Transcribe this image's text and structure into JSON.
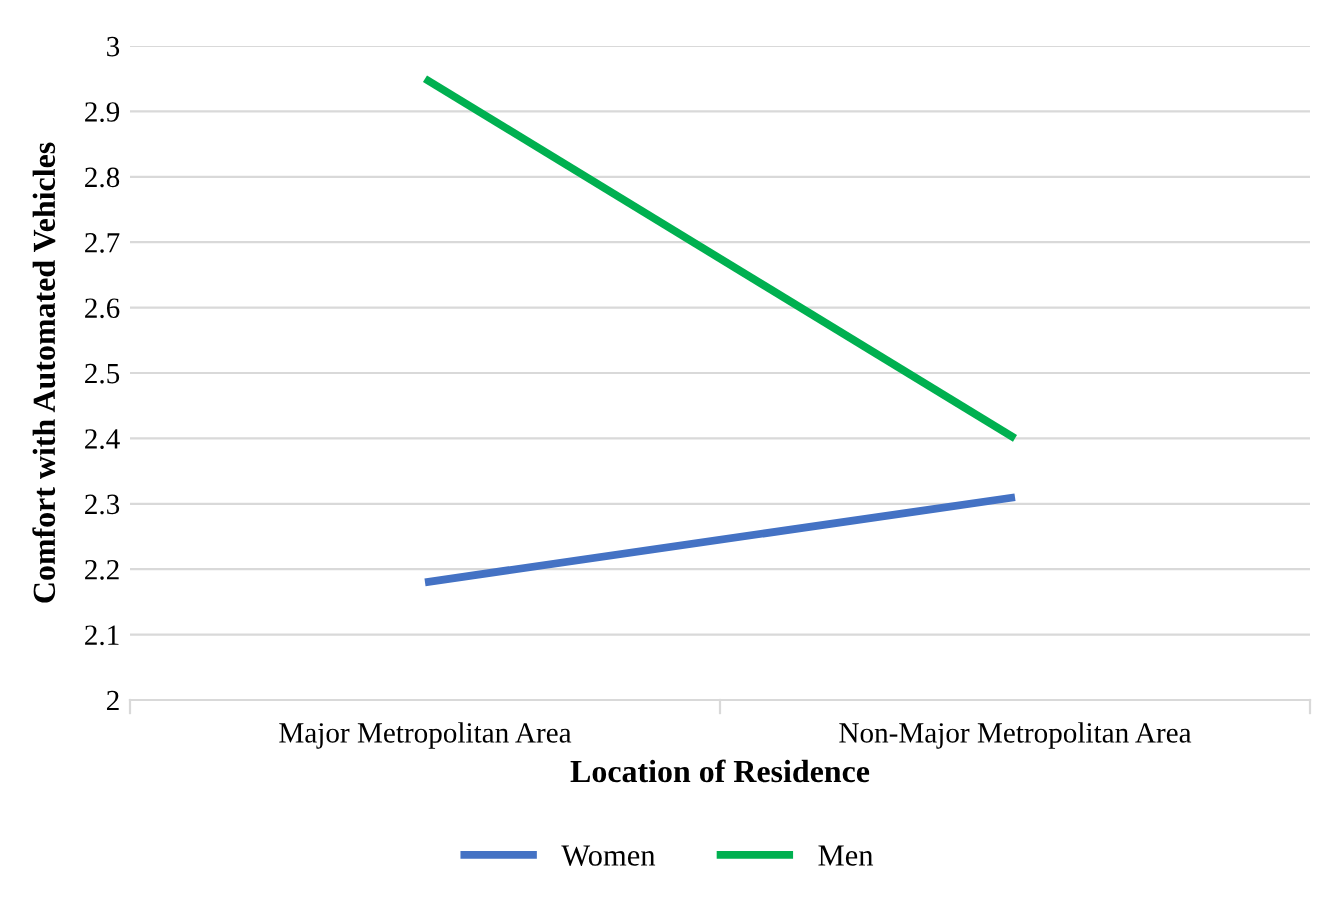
{
  "chart_data": {
    "type": "line",
    "xlabel": "Location of Residence",
    "ylabel": "Comfort with Automated Vehicles",
    "categories": [
      "Major Metropolitan Area",
      "Non-Major Metropolitan Area"
    ],
    "series": [
      {
        "name": "Women",
        "color": "#4472c4",
        "values": [
          2.18,
          2.31
        ]
      },
      {
        "name": "Men",
        "color": "#00b050",
        "values": [
          2.95,
          2.4
        ]
      }
    ],
    "ylim": [
      2,
      3
    ],
    "yticks": [
      2,
      2.1,
      2.2,
      2.3,
      2.4,
      2.5,
      2.6,
      2.7,
      2.8,
      2.9,
      3
    ],
    "grid": "y",
    "legend": "bottom",
    "marker": "none",
    "line_style": "solid"
  }
}
